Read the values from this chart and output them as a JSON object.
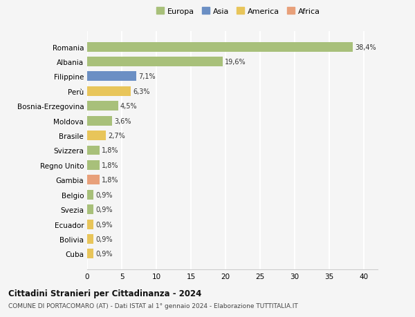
{
  "countries": [
    "Romania",
    "Albania",
    "Filippine",
    "Perù",
    "Bosnia-Erzegovina",
    "Moldova",
    "Brasile",
    "Svizzera",
    "Regno Unito",
    "Gambia",
    "Belgio",
    "Svezia",
    "Ecuador",
    "Bolivia",
    "Cuba"
  ],
  "values": [
    38.4,
    19.6,
    7.1,
    6.3,
    4.5,
    3.6,
    2.7,
    1.8,
    1.8,
    1.8,
    0.9,
    0.9,
    0.9,
    0.9,
    0.9
  ],
  "labels": [
    "38,4%",
    "19,6%",
    "7,1%",
    "6,3%",
    "4,5%",
    "3,6%",
    "2,7%",
    "1,8%",
    "1,8%",
    "1,8%",
    "0,9%",
    "0,9%",
    "0,9%",
    "0,9%",
    "0,9%"
  ],
  "continents": [
    "Europa",
    "Europa",
    "Asia",
    "America",
    "Europa",
    "Europa",
    "America",
    "Europa",
    "Europa",
    "Africa",
    "Europa",
    "Europa",
    "America",
    "America",
    "America"
  ],
  "colors": {
    "Europa": "#a8c07a",
    "Asia": "#6b8fc4",
    "America": "#e8c55a",
    "Africa": "#e8a07a"
  },
  "xlim": [
    0,
    42
  ],
  "xticks": [
    0,
    5,
    10,
    15,
    20,
    25,
    30,
    35,
    40
  ],
  "title": "Cittadini Stranieri per Cittadinanza - 2024",
  "subtitle": "COMUNE DI PORTACOMARO (AT) - Dati ISTAT al 1° gennaio 2024 - Elaborazione TUTTITALIA.IT",
  "bg_color": "#f5f5f5",
  "grid_color": "#ffffff",
  "bar_height": 0.65
}
